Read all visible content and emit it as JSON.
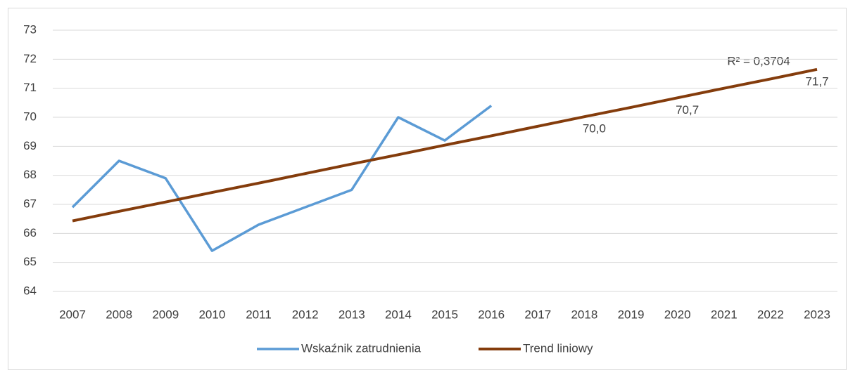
{
  "chart_data": {
    "type": "line",
    "annotation": "R² = 0,3704",
    "categories": [
      "2007",
      "2008",
      "2009",
      "2010",
      "2011",
      "2012",
      "2013",
      "2014",
      "2015",
      "2016",
      "2017",
      "2018",
      "2019",
      "2020",
      "2021",
      "2022",
      "2023"
    ],
    "series": [
      {
        "name": "Wskaźnik zatrudnienia",
        "color": "#5b9bd5",
        "values": [
          66.9,
          68.5,
          67.9,
          65.4,
          66.3,
          66.9,
          67.5,
          70.0,
          69.2,
          70.4,
          null,
          null,
          null,
          null,
          null,
          null,
          null
        ]
      },
      {
        "name": "Trend liniowy",
        "color": "#843c0c",
        "values": [
          66.43,
          66.76,
          67.08,
          67.41,
          67.73,
          68.06,
          68.39,
          68.71,
          69.04,
          69.36,
          69.69,
          70.02,
          70.34,
          70.67,
          71.0,
          71.32,
          71.65
        ],
        "value_labels": [
          null,
          null,
          null,
          null,
          null,
          null,
          null,
          null,
          null,
          null,
          null,
          "70,0",
          null,
          "70,7",
          null,
          null,
          "71,7"
        ]
      }
    ],
    "ylim": [
      64,
      73
    ],
    "yticks": [
      64,
      65,
      66,
      67,
      68,
      69,
      70,
      71,
      72,
      73
    ],
    "grid": true,
    "legend": "bottom"
  }
}
